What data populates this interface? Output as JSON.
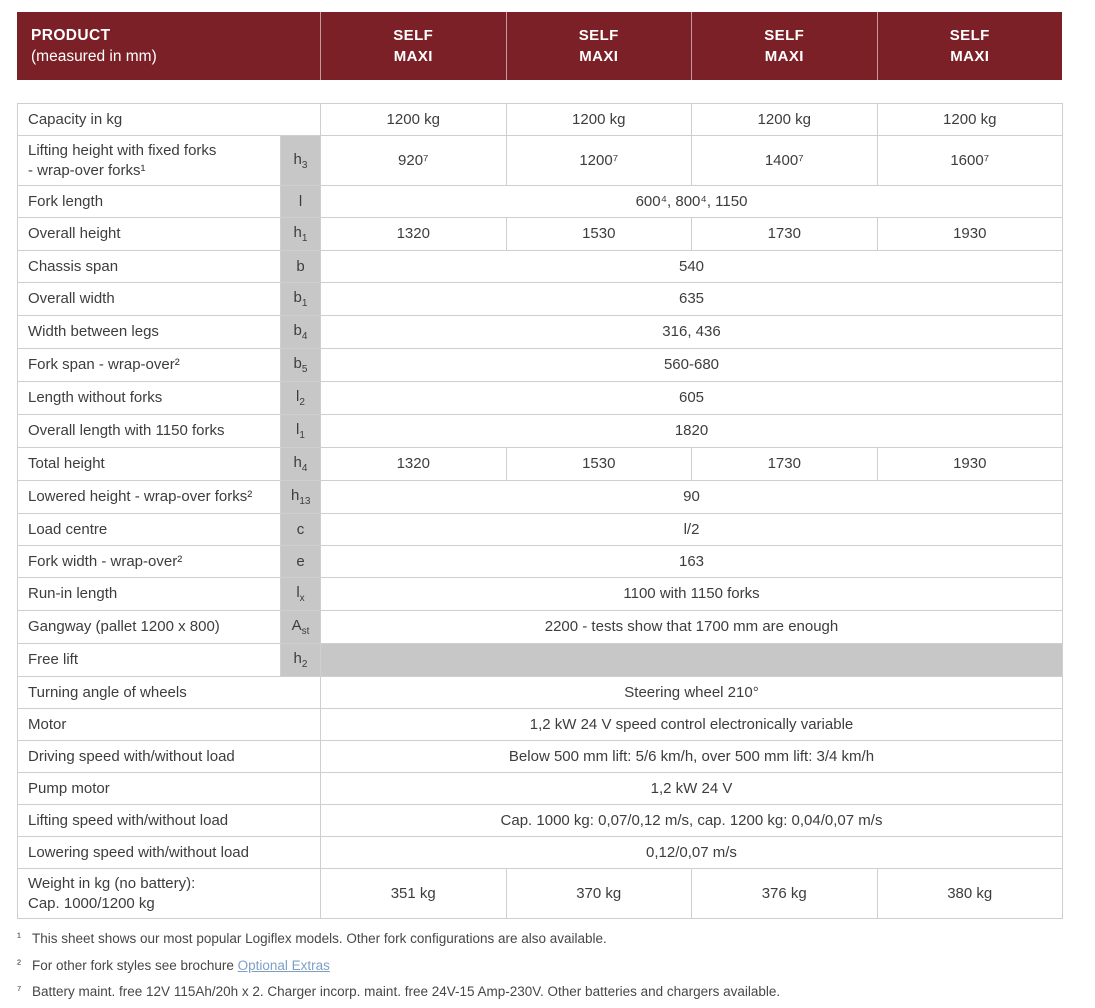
{
  "header": {
    "product_title": "PRODUCT",
    "product_subtitle": "(measured in mm)",
    "models": [
      "SELF\nMAXI",
      "SELF\nMAXI",
      "SELF\nMAXI",
      "SELF\nMAXI"
    ]
  },
  "table": {
    "rows": [
      {
        "label": "Capacity in kg",
        "values": [
          "1200 kg",
          "1200 kg",
          "1200 kg",
          "1200 kg"
        ]
      },
      {
        "label": "Lifting height with fixed forks\n- wrap-over forks¹",
        "sym": {
          "b": "h",
          "s": "3"
        },
        "values": [
          "920⁷",
          "1200⁷",
          "1400⁷",
          "1600⁷"
        ]
      },
      {
        "label": "Fork length",
        "sym": {
          "b": "l",
          "s": ""
        },
        "merged": "600⁴, 800⁴, 1150"
      },
      {
        "label": "Overall height",
        "sym": {
          "b": "h",
          "s": "1"
        },
        "values": [
          "1320",
          "1530",
          "1730",
          "1930"
        ]
      },
      {
        "label": "Chassis span",
        "sym": {
          "b": "b",
          "s": ""
        },
        "merged": "540"
      },
      {
        "label": "Overall width",
        "sym": {
          "b": "b",
          "s": "1"
        },
        "merged": "635"
      },
      {
        "label": "Width between legs",
        "sym": {
          "b": "b",
          "s": "4"
        },
        "merged": "316, 436"
      },
      {
        "label": "Fork span - wrap-over²",
        "sym": {
          "b": "b",
          "s": "5"
        },
        "merged": "560-680"
      },
      {
        "label": "Length without forks",
        "sym": {
          "b": "l",
          "s": "2"
        },
        "merged": "605"
      },
      {
        "label": "Overall length with 1150 forks",
        "sym": {
          "b": "l",
          "s": "1"
        },
        "merged": "1820"
      },
      {
        "label": "Total height",
        "sym": {
          "b": "h",
          "s": "4"
        },
        "values": [
          "1320",
          "1530",
          "1730",
          "1930"
        ]
      },
      {
        "label": "Lowered height - wrap-over forks²",
        "sym": {
          "b": "h",
          "s": "13"
        },
        "merged": "90"
      },
      {
        "label": "Load centre",
        "sym": {
          "b": "c",
          "s": ""
        },
        "merged": "l/2"
      },
      {
        "label": "Fork width - wrap-over²",
        "sym": {
          "b": "e",
          "s": ""
        },
        "merged": "163"
      },
      {
        "label": "Run-in length",
        "sym": {
          "b": "l",
          "s": "x"
        },
        "merged": "1100 with 1150 forks"
      },
      {
        "label": "Gangway (pallet 1200 x 800)",
        "sym": {
          "b": "A",
          "s": "st"
        },
        "merged": "2200 - tests show that 1700 mm are enough"
      },
      {
        "label": "Free lift",
        "sym": {
          "b": "h",
          "s": "2"
        },
        "merged": "",
        "gray": true
      },
      {
        "label": "Turning angle of wheels",
        "merged": "Steering wheel 210°"
      },
      {
        "label": "Motor",
        "merged": "1,2 kW 24 V speed control electronically variable"
      },
      {
        "label": "Driving speed with/without load",
        "merged": "Below 500 mm lift: 5/6 km/h, over 500 mm lift: 3/4 km/h"
      },
      {
        "label": "Pump motor",
        "merged": "1,2 kW 24 V"
      },
      {
        "label": "Lifting speed with/without load",
        "merged": "Cap. 1000 kg: 0,07/0,12 m/s, cap. 1200 kg: 0,04/0,07 m/s"
      },
      {
        "label": "Lowering speed with/without load",
        "merged": "0,12/0,07 m/s"
      },
      {
        "label": "Weight in kg (no battery):\nCap. 1000/1200 kg",
        "values": [
          "351 kg",
          "370 kg",
          "376 kg",
          "380 kg"
        ]
      }
    ]
  },
  "footnotes": [
    {
      "marker": "¹",
      "text": "This sheet shows our most popular Logiflex models. Other fork configurations are also available."
    },
    {
      "marker": "²",
      "text": "For other fork styles see brochure ",
      "link": "Optional Extras"
    },
    {
      "marker": "⁷",
      "text": "Battery maint. free 12V 115Ah/20h x 2. Charger incorp. maint. free 24V-15 Amp-230V. Other batteries and chargers available."
    }
  ],
  "colors": {
    "header_background": "#7A2026",
    "symbol_column_background": "#C7C7C7",
    "table_border": "#CFCFCF",
    "link": "#7D9FC6"
  }
}
